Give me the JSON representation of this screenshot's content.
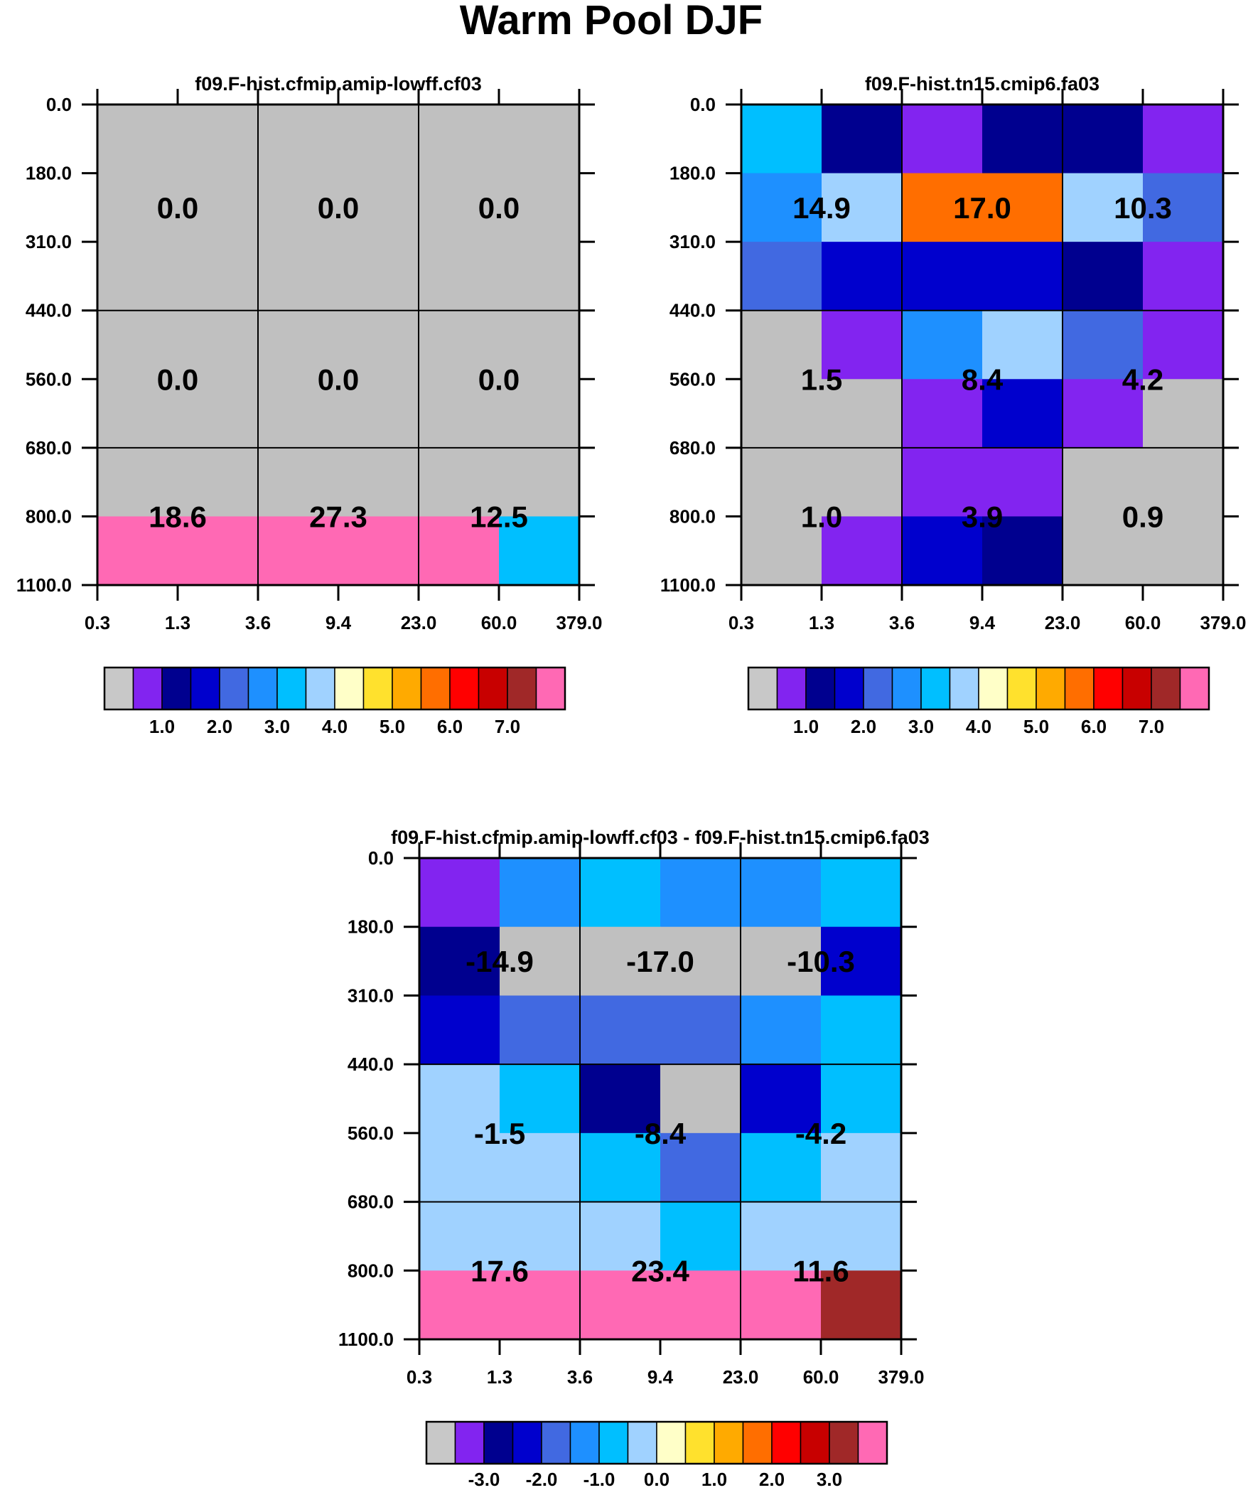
{
  "chart_data": {
    "type": "heatmap",
    "title": "Warm Pool DJF",
    "x_tick_labels": [
      "0.3",
      "1.3",
      "3.6",
      "9.4",
      "23.0",
      "60.0",
      "379.0"
    ],
    "y_tick_labels": [
      "0.0",
      "180.0",
      "310.0",
      "440.0",
      "560.0",
      "680.0",
      "800.0",
      "1100.0"
    ],
    "panels": [
      {
        "title": "f09.F-hist.cfmip.amip-lowff.cf03",
        "cells": [
          [
            0,
            0,
            0,
            0,
            0,
            0
          ],
          [
            0,
            0,
            0,
            0,
            0,
            0
          ],
          [
            0,
            0,
            0,
            0,
            0,
            0
          ],
          [
            0,
            0,
            0,
            0,
            0,
            0
          ],
          [
            0,
            0,
            0,
            0,
            0,
            0
          ],
          [
            0,
            0,
            0,
            0,
            0,
            0
          ],
          [
            15,
            15,
            15,
            15,
            15,
            6
          ]
        ],
        "labels": [
          [
            "0.0",
            "0.0",
            "0.0"
          ],
          [
            "0.0",
            "0.0",
            "0.0"
          ],
          [
            "18.6",
            "27.3",
            "12.5"
          ]
        ],
        "colorbar": {
          "colors": "seq",
          "labels": [
            "1.0",
            "2.0",
            "3.0",
            "4.0",
            "5.0",
            "6.0",
            "7.0"
          ]
        }
      },
      {
        "title": "f09.F-hist.tn15.cmip6.fa03",
        "cells": [
          [
            6,
            2,
            1,
            2,
            2,
            1
          ],
          [
            5,
            7,
            11,
            11,
            7,
            4
          ],
          [
            4,
            3,
            3,
            3,
            2,
            1
          ],
          [
            0,
            1,
            5,
            7,
            4,
            1
          ],
          [
            0,
            0,
            1,
            3,
            1,
            0
          ],
          [
            0,
            0,
            1,
            1,
            0,
            0
          ],
          [
            0,
            1,
            3,
            2,
            0,
            0
          ]
        ],
        "labels": [
          [
            "14.9",
            "17.0",
            "10.3"
          ],
          [
            "1.5",
            "8.4",
            "4.2"
          ],
          [
            "1.0",
            "3.9",
            "0.9"
          ]
        ],
        "colorbar": {
          "colors": "seq",
          "labels": [
            "1.0",
            "2.0",
            "3.0",
            "4.0",
            "5.0",
            "6.0",
            "7.0"
          ]
        }
      },
      {
        "title": "f09.F-hist.cfmip.amip-lowff.cf03 - f09.F-hist.tn15.cmip6.fa03",
        "cells": [
          [
            1,
            5,
            6,
            5,
            5,
            6
          ],
          [
            2,
            0,
            0,
            0,
            0,
            3
          ],
          [
            3,
            4,
            4,
            4,
            5,
            6
          ],
          [
            7,
            6,
            2,
            0,
            3,
            6
          ],
          [
            7,
            7,
            6,
            4,
            6,
            7
          ],
          [
            7,
            7,
            7,
            6,
            7,
            7
          ],
          [
            15,
            15,
            15,
            15,
            15,
            14
          ]
        ],
        "labels": [
          [
            "-14.9",
            "-17.0",
            "-10.3"
          ],
          [
            "-1.5",
            "-8.4",
            "-4.2"
          ],
          [
            "17.6",
            "23.4",
            "11.6"
          ]
        ],
        "colorbar": {
          "colors": "seq",
          "labels": [
            "-3.0",
            "-2.0",
            "-1.0",
            "0.0",
            "1.0",
            "2.0",
            "3.0"
          ]
        }
      }
    ]
  },
  "palette": [
    "#c0c0c0",
    "#8224f0",
    "#00008f",
    "#0000cd",
    "#4169e1",
    "#1e90ff",
    "#00bfff",
    "#a0d2ff",
    "#ffffc8",
    "#ffe12d",
    "#ffaa00",
    "#ff6e00",
    "#ff0000",
    "#c80000",
    "#a02828",
    "#ff69b4"
  ],
  "colorbar_palette": [
    "#c8c8c8",
    "#8224f0",
    "#00008f",
    "#0000cd",
    "#4169e1",
    "#1e90ff",
    "#00bfff",
    "#a0d2ff",
    "#ffffc8",
    "#ffe12d",
    "#ffaa00",
    "#ff6e00",
    "#ff0000",
    "#c80000",
    "#a02828",
    "#ff69b4"
  ]
}
